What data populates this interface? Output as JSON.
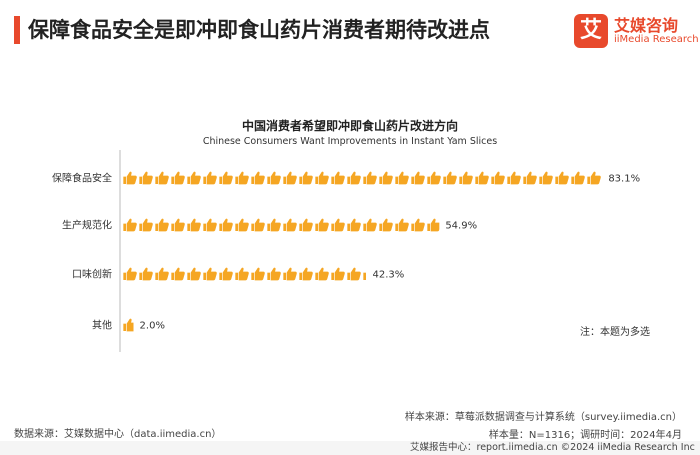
{
  "header": {
    "title": "保障食品安全是即冲即食山药片消费者期待改进点",
    "brand_color": "#e8492c"
  },
  "logo": {
    "mark": "艾",
    "name_cn": "艾媒咨询",
    "name_en": "iiMedia Research"
  },
  "chart_data": {
    "type": "bar",
    "title": "中国消费者希望即冲即食山药片改进方向",
    "subtitle": "Chinese Consumers Want Improvements in Instant Yam Slices",
    "categories": [
      "保障食品安全",
      "生产规范化",
      "口味创新",
      "其他"
    ],
    "values": [
      83.1,
      54.9,
      42.3,
      2.0
    ],
    "value_labels": [
      "83.1%",
      "54.9%",
      "42.3%",
      "2.0%"
    ],
    "unit": "%",
    "orientation": "horizontal",
    "mark": "thumbs-up-icon",
    "color": "#f5a623",
    "grid": false,
    "legend": "none"
  },
  "note": "注：本题为多选",
  "source": {
    "sample_source": "样本来源：草莓派数据调查与计算系统（survey.iimedia.cn）",
    "sample_info": "样本量：N=1316；调研时间：2024年4月",
    "data_source": "数据来源：艾媒数据中心（data.iimedia.cn）"
  },
  "footer": {
    "text": "艾媒报告中心：report.iimedia.cn  ©2024  iiMedia Research  Inc"
  }
}
